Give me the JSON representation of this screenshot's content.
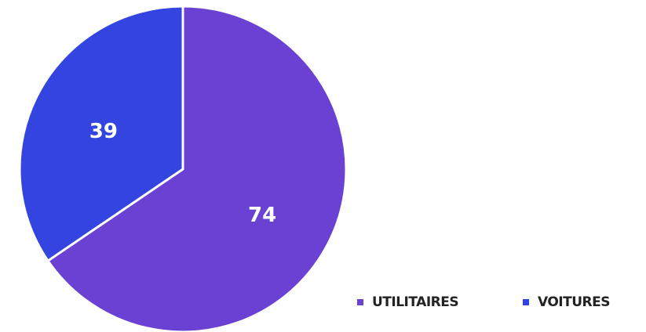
{
  "chart_data": {
    "type": "pie",
    "categories": [
      "UTILITAIRES",
      "VOITURES"
    ],
    "values": [
      74,
      39
    ],
    "colors": [
      "#6b41d3",
      "#3344e0"
    ],
    "legend": "bottom-right"
  }
}
